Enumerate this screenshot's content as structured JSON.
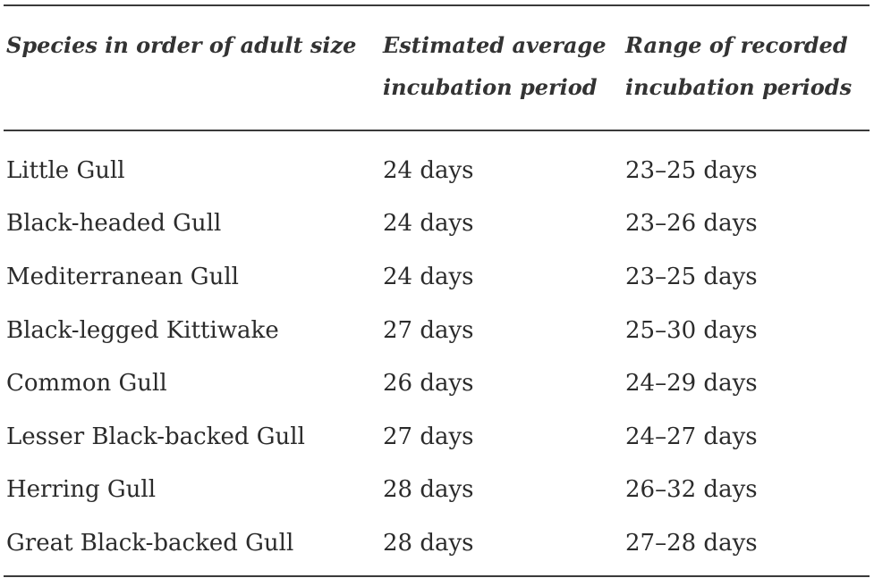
{
  "table": {
    "headers": [
      "Species in order of adult size",
      "Estimated average incubation period",
      "Range of recorded incubation periods"
    ],
    "rows": [
      [
        "Little Gull",
        "24 days",
        "23–25 days"
      ],
      [
        "Black-headed Gull",
        "24 days",
        "23–26 days"
      ],
      [
        "Mediterranean Gull",
        "24 days",
        "23–25 days"
      ],
      [
        "Black-legged Kittiwake",
        "27 days",
        "25–30 days"
      ],
      [
        "Common Gull",
        "26 days",
        "24–29 days"
      ],
      [
        "Lesser Black-backed Gull",
        "27 days",
        "24–27 days"
      ],
      [
        "Herring Gull",
        "28 days",
        "26–32 days"
      ],
      [
        "Great Black-backed Gull",
        "28 days",
        "27–28 days"
      ]
    ]
  }
}
